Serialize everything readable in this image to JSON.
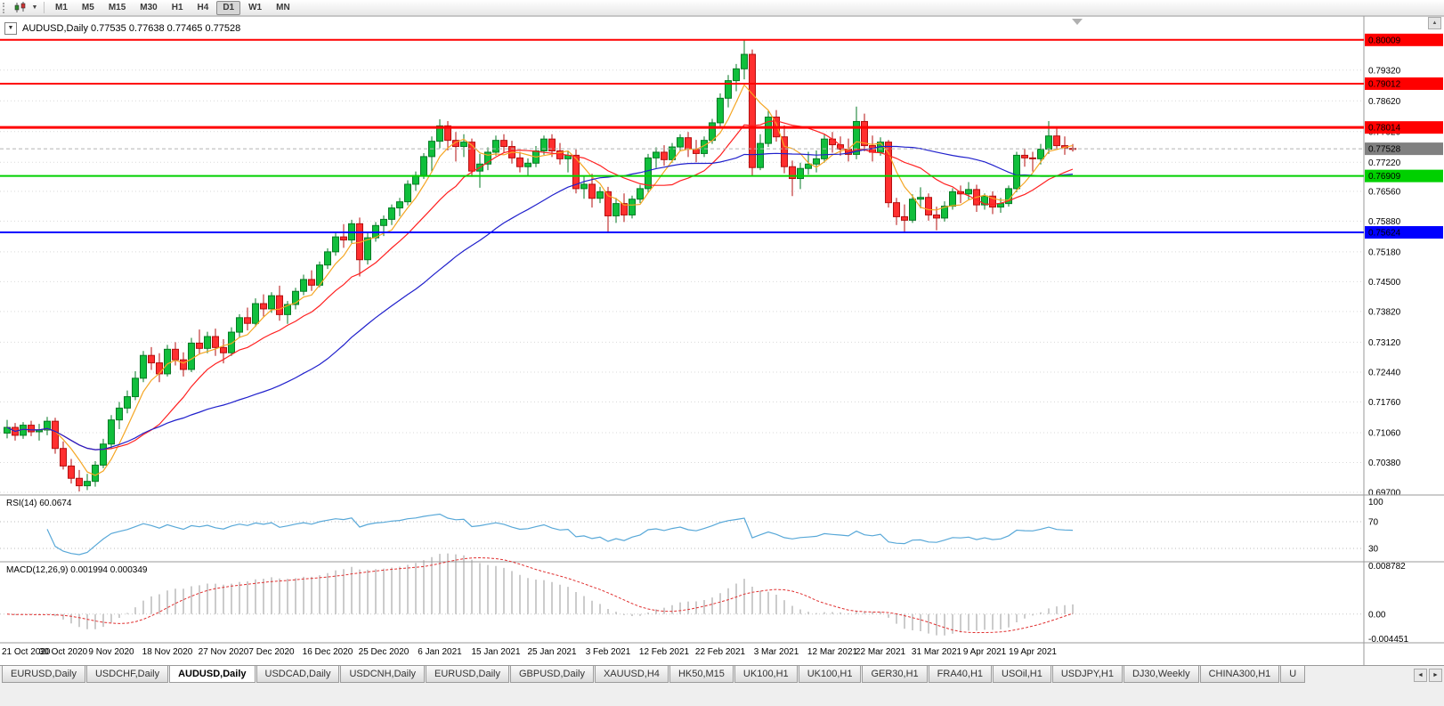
{
  "toolbar": {
    "timeframes": [
      "M1",
      "M5",
      "M15",
      "M30",
      "H1",
      "H4",
      "D1",
      "W1",
      "MN"
    ],
    "active_timeframe": "D1",
    "caret": "▼"
  },
  "chart": {
    "symbol_ohlc_line": "AUDUSD,Daily 0.77535 0.77638 0.77465 0.77528",
    "collapse_glyph": "▼",
    "scroll_up_glyph": "▲"
  },
  "chart_data": {
    "type": "candlestick",
    "title": "AUDUSD,Daily",
    "open": "0.77535",
    "high": "0.77638",
    "low": "0.77465",
    "close": "0.77528",
    "price_range": [
      0.6968,
      0.8035
    ],
    "colors": {
      "up": "#10bf3c",
      "up_border": "#067a24",
      "down": "#ff2f2f",
      "down_border": "#b40f0f",
      "grid": "#d9d9d9",
      "separator": "#9a9a9a",
      "axis_line": "#9a9a9a"
    },
    "candles": [
      [
        0.7105,
        0.7135,
        0.7093,
        0.7118
      ],
      [
        0.7118,
        0.7128,
        0.7088,
        0.71
      ],
      [
        0.71,
        0.713,
        0.7092,
        0.7123
      ],
      [
        0.7123,
        0.7133,
        0.7098,
        0.7108
      ],
      [
        0.7108,
        0.7126,
        0.7088,
        0.7112
      ],
      [
        0.7112,
        0.7142,
        0.71,
        0.7132
      ],
      [
        0.7132,
        0.714,
        0.7058,
        0.707
      ],
      [
        0.707,
        0.7086,
        0.7022,
        0.703
      ],
      [
        0.703,
        0.7046,
        0.699,
        0.7002
      ],
      [
        0.7002,
        0.7021,
        0.6972,
        0.6985
      ],
      [
        0.6985,
        0.7012,
        0.6975,
        0.6995
      ],
      [
        0.6995,
        0.7041,
        0.6983,
        0.7032
      ],
      [
        0.7032,
        0.7092,
        0.7025,
        0.708
      ],
      [
        0.708,
        0.7146,
        0.707,
        0.7135
      ],
      [
        0.7135,
        0.7176,
        0.7114,
        0.7162
      ],
      [
        0.7162,
        0.7202,
        0.715,
        0.7188
      ],
      [
        0.7188,
        0.7246,
        0.718,
        0.723
      ],
      [
        0.723,
        0.7292,
        0.7221,
        0.7282
      ],
      [
        0.7282,
        0.7301,
        0.7249,
        0.7265
      ],
      [
        0.7265,
        0.7287,
        0.7221,
        0.724
      ],
      [
        0.724,
        0.7306,
        0.7234,
        0.7296
      ],
      [
        0.7296,
        0.7312,
        0.7259,
        0.7272
      ],
      [
        0.7272,
        0.7289,
        0.7234,
        0.725
      ],
      [
        0.725,
        0.7322,
        0.7244,
        0.731
      ],
      [
        0.731,
        0.7341,
        0.7284,
        0.7298
      ],
      [
        0.7298,
        0.7336,
        0.7287,
        0.7325
      ],
      [
        0.7325,
        0.7343,
        0.7281,
        0.73
      ],
      [
        0.73,
        0.7319,
        0.7264,
        0.7288
      ],
      [
        0.7288,
        0.7346,
        0.7281,
        0.7335
      ],
      [
        0.7335,
        0.7376,
        0.7324,
        0.7368
      ],
      [
        0.7368,
        0.7391,
        0.7339,
        0.7355
      ],
      [
        0.7355,
        0.7412,
        0.7347,
        0.74
      ],
      [
        0.74,
        0.7421,
        0.7371,
        0.7388
      ],
      [
        0.7388,
        0.7426,
        0.7379,
        0.7418
      ],
      [
        0.7418,
        0.7441,
        0.7361,
        0.7375
      ],
      [
        0.7375,
        0.7406,
        0.7354,
        0.7398
      ],
      [
        0.7398,
        0.7436,
        0.7387,
        0.7428
      ],
      [
        0.7428,
        0.7466,
        0.7419,
        0.7455
      ],
      [
        0.7455,
        0.7476,
        0.7429,
        0.7442
      ],
      [
        0.7442,
        0.7496,
        0.7437,
        0.7488
      ],
      [
        0.7488,
        0.7526,
        0.7479,
        0.7518
      ],
      [
        0.7518,
        0.7561,
        0.7509,
        0.7552
      ],
      [
        0.7552,
        0.7581,
        0.7527,
        0.7545
      ],
      [
        0.7545,
        0.7591,
        0.7537,
        0.7582
      ],
      [
        0.7582,
        0.7596,
        0.7462,
        0.75
      ],
      [
        0.75,
        0.7561,
        0.7489,
        0.755
      ],
      [
        0.755,
        0.7586,
        0.7541,
        0.7578
      ],
      [
        0.7578,
        0.7601,
        0.7554,
        0.7592
      ],
      [
        0.7592,
        0.7626,
        0.7579,
        0.7618
      ],
      [
        0.7618,
        0.7641,
        0.7599,
        0.7632
      ],
      [
        0.7632,
        0.7681,
        0.7624,
        0.7672
      ],
      [
        0.7672,
        0.7701,
        0.7657,
        0.7692
      ],
      [
        0.7692,
        0.7743,
        0.7684,
        0.7735
      ],
      [
        0.7735,
        0.7781,
        0.7699,
        0.777
      ],
      [
        0.777,
        0.782,
        0.7754,
        0.7805
      ],
      [
        0.7805,
        0.7816,
        0.7749,
        0.7772
      ],
      [
        0.7772,
        0.7791,
        0.7724,
        0.7758
      ],
      [
        0.7758,
        0.7786,
        0.7734,
        0.7768
      ],
      [
        0.7768,
        0.7776,
        0.7689,
        0.7702
      ],
      [
        0.7702,
        0.7741,
        0.7664,
        0.7718
      ],
      [
        0.7718,
        0.7756,
        0.7704,
        0.7745
      ],
      [
        0.7745,
        0.7783,
        0.7737,
        0.7772
      ],
      [
        0.7772,
        0.7786,
        0.7744,
        0.7758
      ],
      [
        0.7758,
        0.7771,
        0.7719,
        0.7732
      ],
      [
        0.7732,
        0.7746,
        0.7699,
        0.7712
      ],
      [
        0.7712,
        0.7731,
        0.7691,
        0.772
      ],
      [
        0.772,
        0.7759,
        0.7711,
        0.7748
      ],
      [
        0.7748,
        0.7783,
        0.7739,
        0.7775
      ],
      [
        0.7775,
        0.7786,
        0.7734,
        0.7748
      ],
      [
        0.7748,
        0.7766,
        0.7717,
        0.773
      ],
      [
        0.773,
        0.7749,
        0.7699,
        0.7738
      ],
      [
        0.7738,
        0.7751,
        0.7651,
        0.7662
      ],
      [
        0.7662,
        0.7691,
        0.7639,
        0.7672
      ],
      [
        0.7672,
        0.7696,
        0.7619,
        0.764
      ],
      [
        0.764,
        0.7666,
        0.7629,
        0.7655
      ],
      [
        0.7655,
        0.7666,
        0.7563,
        0.76
      ],
      [
        0.76,
        0.7641,
        0.7584,
        0.7628
      ],
      [
        0.7628,
        0.7651,
        0.7586,
        0.7602
      ],
      [
        0.7602,
        0.7646,
        0.7594,
        0.7638
      ],
      [
        0.7638,
        0.7671,
        0.7629,
        0.7662
      ],
      [
        0.7662,
        0.7741,
        0.7654,
        0.7732
      ],
      [
        0.7732,
        0.7756,
        0.7709,
        0.7745
      ],
      [
        0.7745,
        0.7761,
        0.7714,
        0.7728
      ],
      [
        0.7728,
        0.7766,
        0.7721,
        0.7757
      ],
      [
        0.7757,
        0.7786,
        0.7747,
        0.7778
      ],
      [
        0.7778,
        0.7791,
        0.7734,
        0.7752
      ],
      [
        0.7752,
        0.7773,
        0.7722,
        0.7742
      ],
      [
        0.7742,
        0.7781,
        0.7734,
        0.7772
      ],
      [
        0.7772,
        0.7821,
        0.7764,
        0.7812
      ],
      [
        0.7812,
        0.7879,
        0.7804,
        0.7868
      ],
      [
        0.7868,
        0.7921,
        0.7847,
        0.7908
      ],
      [
        0.7908,
        0.7946,
        0.7884,
        0.7935
      ],
      [
        0.7935,
        0.8001,
        0.7911,
        0.7968
      ],
      [
        0.7968,
        0.7979,
        0.7692,
        0.771
      ],
      [
        0.771,
        0.7786,
        0.7704,
        0.7765
      ],
      [
        0.7765,
        0.7839,
        0.7757,
        0.7825
      ],
      [
        0.7825,
        0.7841,
        0.7769,
        0.778
      ],
      [
        0.778,
        0.7806,
        0.7697,
        0.7712
      ],
      [
        0.7712,
        0.7726,
        0.7645,
        0.7685
      ],
      [
        0.7685,
        0.7721,
        0.7661,
        0.7708
      ],
      [
        0.7708,
        0.7746,
        0.7694,
        0.7718
      ],
      [
        0.7718,
        0.7749,
        0.7699,
        0.773
      ],
      [
        0.773,
        0.7786,
        0.7721,
        0.7775
      ],
      [
        0.7775,
        0.7791,
        0.7744,
        0.7762
      ],
      [
        0.7762,
        0.7781,
        0.7737,
        0.7752
      ],
      [
        0.7752,
        0.7776,
        0.7724,
        0.774
      ],
      [
        0.774,
        0.7849,
        0.7729,
        0.7815
      ],
      [
        0.7815,
        0.7833,
        0.7747,
        0.776
      ],
      [
        0.776,
        0.7783,
        0.7724,
        0.7745
      ],
      [
        0.7745,
        0.7779,
        0.7737,
        0.7768
      ],
      [
        0.7768,
        0.7773,
        0.7619,
        0.763
      ],
      [
        0.763,
        0.7641,
        0.7579,
        0.7598
      ],
      [
        0.7598,
        0.7626,
        0.7562,
        0.759
      ],
      [
        0.759,
        0.7649,
        0.7584,
        0.7638
      ],
      [
        0.7638,
        0.7665,
        0.7617,
        0.7642
      ],
      [
        0.7642,
        0.7651,
        0.7589,
        0.7602
      ],
      [
        0.7602,
        0.7621,
        0.7567,
        0.7595
      ],
      [
        0.7595,
        0.7633,
        0.7587,
        0.7622
      ],
      [
        0.7622,
        0.7663,
        0.7614,
        0.7655
      ],
      [
        0.7655,
        0.7669,
        0.7629,
        0.765
      ],
      [
        0.765,
        0.7677,
        0.7637,
        0.766
      ],
      [
        0.766,
        0.7671,
        0.7609,
        0.7625
      ],
      [
        0.7625,
        0.7651,
        0.7614,
        0.7645
      ],
      [
        0.7645,
        0.7656,
        0.7604,
        0.762
      ],
      [
        0.762,
        0.7641,
        0.7607,
        0.7628
      ],
      [
        0.7628,
        0.7669,
        0.7621,
        0.7662
      ],
      [
        0.7662,
        0.7746,
        0.7654,
        0.7738
      ],
      [
        0.7738,
        0.7753,
        0.7712,
        0.7732
      ],
      [
        0.7732,
        0.7746,
        0.7701,
        0.773
      ],
      [
        0.773,
        0.7764,
        0.7717,
        0.7752
      ],
      [
        0.7752,
        0.7816,
        0.7741,
        0.7782
      ],
      [
        0.7782,
        0.7799,
        0.7751,
        0.776
      ],
      [
        0.776,
        0.7781,
        0.7739,
        0.7755
      ],
      [
        0.77535,
        0.77638,
        0.77465,
        0.77528
      ]
    ],
    "date_labels": [
      [
        0,
        "21 Oct 2020"
      ],
      [
        7,
        "30 Oct 2020"
      ],
      [
        13,
        "9 Nov 2020"
      ],
      [
        20,
        "18 Nov 2020"
      ],
      [
        27,
        "27 Nov 2020"
      ],
      [
        33,
        "7 Dec 2020"
      ],
      [
        40,
        "16 Dec 2020"
      ],
      [
        47,
        "25 Dec 2020"
      ],
      [
        54,
        "6 Jan 2021"
      ],
      [
        61,
        "15 Jan 2021"
      ],
      [
        68,
        "25 Jan 2021"
      ],
      [
        75,
        "3 Feb 2021"
      ],
      [
        82,
        "12 Feb 2021"
      ],
      [
        89,
        "22 Feb 2021"
      ],
      [
        96,
        "3 Mar 2021"
      ],
      [
        103,
        "12 Mar 2021"
      ],
      [
        109,
        "22 Mar 2021"
      ],
      [
        116,
        "31 Mar 2021"
      ],
      [
        122,
        "9 Apr 2021"
      ],
      [
        128,
        "19 Apr 2021"
      ]
    ],
    "axis_price_labels": [
      "0.79320",
      "0.78620",
      "0.77920",
      "0.77220",
      "0.76560",
      "0.75880",
      "0.75180",
      "0.74500",
      "0.73820",
      "0.73120",
      "0.72440",
      "0.71760",
      "0.71060",
      "0.70380",
      "0.69700"
    ],
    "levels": [
      {
        "value": 0.80009,
        "label": "0.80009",
        "color": "#ff0000",
        "width": 2
      },
      {
        "value": 0.79012,
        "label": "0.79012",
        "color": "#ff0000",
        "width": 2
      },
      {
        "value": 0.78014,
        "label": "0.78014",
        "color": "#ff0000",
        "width": 3
      },
      {
        "value": 0.76909,
        "label": "0.76909",
        "color": "#00d000",
        "width": 2
      },
      {
        "value": 0.75624,
        "label": "0.75624",
        "color": "#0000ff",
        "width": 2
      }
    ],
    "current_price": {
      "value": 0.77528,
      "label": "0.77528",
      "box_color": "#808080",
      "line_color": "#b5b5b5"
    },
    "moving_averages": [
      {
        "name": "MA-fast",
        "period": 5,
        "color": "#f5a623"
      },
      {
        "name": "MA-mid",
        "period": 13,
        "color": "#ff2020"
      },
      {
        "name": "MA-slow",
        "period": 34,
        "color": "#2020cc"
      }
    ],
    "rsi": {
      "label": "RSI(14) 60.0674",
      "period": 14,
      "color": "#58a8d8",
      "range": [
        10,
        110
      ],
      "axis_labels": [
        "100",
        "70",
        "30"
      ],
      "guide_levels": [
        70,
        30
      ]
    },
    "macd": {
      "label": "MACD(12,26,9) 0.001994 0.000349",
      "fast": 12,
      "slow": 26,
      "signal_period": 9,
      "range": [
        -0.0052,
        0.0095
      ],
      "hist_color": "#9a9a9a",
      "signal_color": "#e03030",
      "axis_labels": [
        "0.008782",
        "0.00",
        "-0.004451"
      ]
    }
  },
  "tabs": {
    "items": [
      {
        "label": "EURUSD,Daily",
        "active": false
      },
      {
        "label": "USDCHF,Daily",
        "active": false
      },
      {
        "label": "AUDUSD,Daily",
        "active": true
      },
      {
        "label": "USDCAD,Daily",
        "active": false
      },
      {
        "label": "USDCNH,Daily",
        "active": false
      },
      {
        "label": "EURUSD,Daily",
        "active": false
      },
      {
        "label": "GBPUSD,Daily",
        "active": false
      },
      {
        "label": "XAUUSD,H4",
        "active": false
      },
      {
        "label": "HK50,M15",
        "active": false
      },
      {
        "label": "UK100,H1",
        "active": false
      },
      {
        "label": "UK100,H1",
        "active": false
      },
      {
        "label": "GER30,H1",
        "active": false
      },
      {
        "label": "FRA40,H1",
        "active": false
      },
      {
        "label": "USOil,H1",
        "active": false
      },
      {
        "label": "USDJPY,H1",
        "active": false
      },
      {
        "label": "DJ30,Weekly",
        "active": false
      },
      {
        "label": "CHINA300,H1",
        "active": false
      },
      {
        "label": "U",
        "active": false
      }
    ],
    "scroll_left": "◄",
    "scroll_right": "►"
  }
}
